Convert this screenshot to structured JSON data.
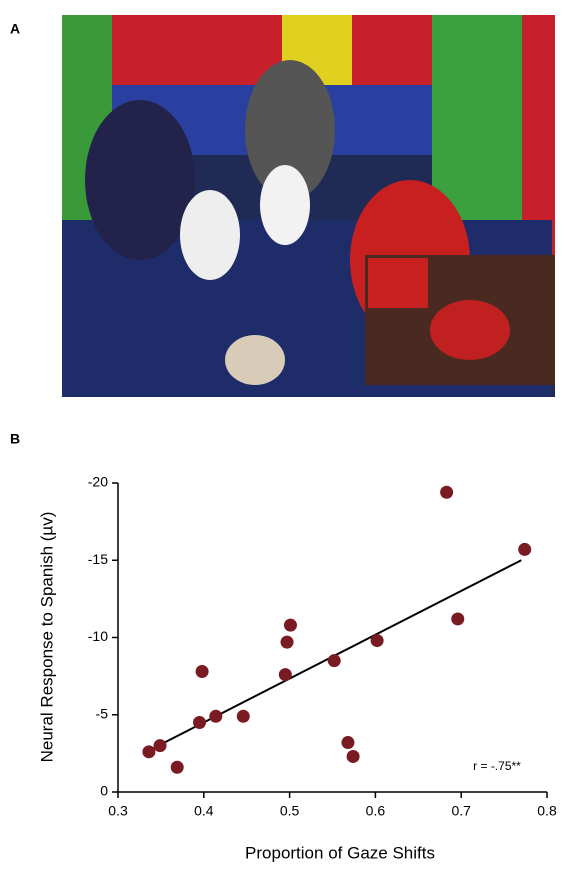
{
  "panel_a": {
    "label": "A"
  },
  "chart_data": {
    "type": "scatter",
    "panel_label": "B",
    "x_label": "Proportion of Gaze Shifts",
    "y_label": "Neural Response to Spanish (µv)",
    "annotation": "r = -.75**",
    "x": [
      0.336,
      0.349,
      0.369,
      0.398,
      0.395,
      0.414,
      0.446,
      0.495,
      0.497,
      0.501,
      0.552,
      0.568,
      0.574,
      0.602,
      0.683,
      0.696,
      0.774
    ],
    "values": [
      -2.6,
      -3.0,
      -1.6,
      -7.8,
      -4.5,
      -4.9,
      -4.9,
      -7.6,
      -9.7,
      -10.8,
      -8.5,
      -3.2,
      -2.3,
      -9.8,
      -19.4,
      -11.2,
      -15.7
    ],
    "color": "#7a1a22",
    "trend_line": {
      "x": [
        0.34,
        0.77
      ],
      "values": [
        -2.8,
        -15.0
      ],
      "color": "#000000"
    },
    "xlim": [
      0.3,
      0.8
    ],
    "xticks": [
      0.3,
      0.4,
      0.5,
      0.6,
      0.7,
      0.8
    ],
    "ylim": [
      0,
      -20
    ],
    "yticks": [
      0,
      -5,
      -10,
      -15,
      -20
    ]
  }
}
